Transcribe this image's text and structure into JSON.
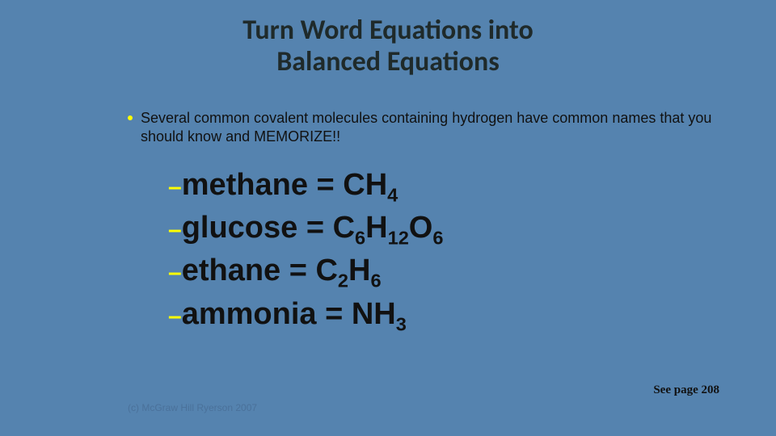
{
  "slide": {
    "background_color": "#5583af",
    "accent_color": "#ffff00",
    "text_color": "#111111",
    "title_line1": "Turn Word Equations into",
    "title_line2": "Balanced Equations",
    "title_fontsize": 34,
    "bullet": "Several common covalent molecules containing hydrogen have common names that you should know and MEMORIZE!!",
    "bullet_fontsize": 18,
    "molecule_fontsize": 38,
    "molecules": [
      {
        "name": "methane",
        "formula_html": "CH<sub>4</sub>"
      },
      {
        "name": "glucose",
        "formula_html": "C<sub>6</sub>H<sub>12</sub>O<sub>6</sub>"
      },
      {
        "name": "ethane",
        "formula_html": "C<sub>2</sub>H<sub>6</sub>"
      },
      {
        "name": "ammonia",
        "formula_html": "NH<sub>3</sub>"
      }
    ],
    "see_page": "See page 208",
    "copyright": "(c) McGraw Hill Ryerson 2007"
  }
}
